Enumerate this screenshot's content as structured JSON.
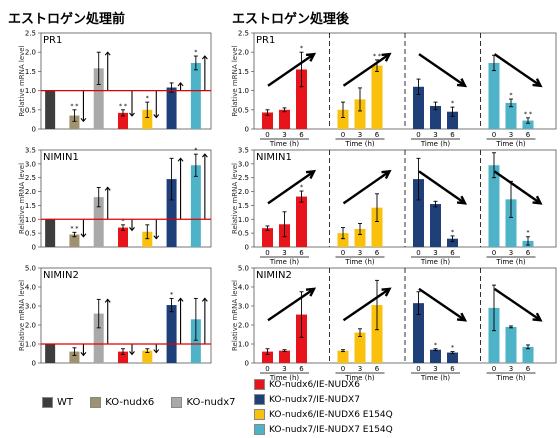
{
  "headings": {
    "before": "エストロゲン処理前",
    "after": "エストロゲン処理後"
  },
  "legend_left": [
    {
      "label": "WT",
      "color": "#3d3d3d"
    },
    {
      "label": "KO-nudx6",
      "color": "#9e9270"
    },
    {
      "label": "KO-nudx7",
      "color": "#a9a9a9"
    }
  ],
  "legend_right": [
    {
      "label": "KO-nudx6/IE-NUDX6",
      "color": "#e8141b"
    },
    {
      "label": "KO-nudx7/IE-NUDX7",
      "color": "#1f3f79"
    },
    {
      "label": "KO-nudx6/IE-NUDX6 E154Q",
      "color": "#f9c10b"
    },
    {
      "label": "KO-nudx7/IE-NUDX7 E154Q",
      "color": "#4fb3c8"
    }
  ],
  "ylabel": "Relative mRNA level",
  "chart_data": [
    {
      "type": "bar",
      "gene": "PR1",
      "panel": "before",
      "ylim": [
        0,
        2.5
      ],
      "yticks": [
        "0",
        "0.5",
        "1.0",
        "1.5",
        "2.0",
        "2.5"
      ],
      "reference_line": 1.0,
      "bars": [
        {
          "strain": "WT",
          "color": "#3d3d3d",
          "value": 1.0,
          "err": 0.0,
          "sig": "",
          "arrow": ""
        },
        {
          "strain": "KO-nudx6",
          "color": "#9e9270",
          "value": 0.35,
          "err": 0.15,
          "sig": "* *",
          "arrow": "down"
        },
        {
          "strain": "KO-nudx7",
          "color": "#a9a9a9",
          "value": 1.58,
          "err": 0.42,
          "sig": "",
          "arrow": "up"
        },
        {
          "strain": "KO-nudx6/IE-NUDX6",
          "color": "#e8141b",
          "value": 0.42,
          "err": 0.08,
          "sig": "* *",
          "arrow": "down"
        },
        {
          "strain": "KO-nudx6/IE-NUDX6 E154Q",
          "color": "#f9c10b",
          "value": 0.5,
          "err": 0.2,
          "sig": "*",
          "arrow": "down"
        },
        {
          "strain": "KO-nudx7/IE-NUDX7",
          "color": "#1f3f79",
          "value": 1.08,
          "err": 0.12,
          "sig": "",
          "arrow": "up"
        },
        {
          "strain": "KO-nudx7/IE-NUDX7 E154Q",
          "color": "#4fb3c8",
          "value": 1.72,
          "err": 0.18,
          "sig": "*",
          "arrow": "up"
        }
      ]
    },
    {
      "type": "bar",
      "gene": "NIMIN1",
      "panel": "before",
      "ylim": [
        0,
        3.5
      ],
      "yticks": [
        "0",
        "0.5",
        "1.0",
        "1.5",
        "2.0",
        "2.5",
        "3.0",
        "3.5"
      ],
      "reference_line": 1.0,
      "bars": [
        {
          "strain": "WT",
          "color": "#3d3d3d",
          "value": 1.0,
          "err": 0.0,
          "sig": "",
          "arrow": ""
        },
        {
          "strain": "KO-nudx6",
          "color": "#9e9270",
          "value": 0.45,
          "err": 0.08,
          "sig": "* *",
          "arrow": "down"
        },
        {
          "strain": "KO-nudx7",
          "color": "#a9a9a9",
          "value": 1.8,
          "err": 0.35,
          "sig": "",
          "arrow": "up"
        },
        {
          "strain": "KO-nudx6/IE-NUDX6",
          "color": "#e8141b",
          "value": 0.7,
          "err": 0.1,
          "sig": "*",
          "arrow": "down"
        },
        {
          "strain": "KO-nudx6/IE-NUDX6 E154Q",
          "color": "#f9c10b",
          "value": 0.55,
          "err": 0.25,
          "sig": "",
          "arrow": "down"
        },
        {
          "strain": "KO-nudx7/IE-NUDX7",
          "color": "#1f3f79",
          "value": 2.45,
          "err": 0.75,
          "sig": "",
          "arrow": "up"
        },
        {
          "strain": "KO-nudx7/IE-NUDX7 E154Q",
          "color": "#4fb3c8",
          "value": 2.95,
          "err": 0.4,
          "sig": "*",
          "arrow": "up"
        }
      ]
    },
    {
      "type": "bar",
      "gene": "NIMIN2",
      "panel": "before",
      "ylim": [
        0,
        5.0
      ],
      "yticks": [
        "0",
        "1.0",
        "2.0",
        "3.0",
        "4.0",
        "5.0"
      ],
      "reference_line": 1.0,
      "bars": [
        {
          "strain": "WT",
          "color": "#3d3d3d",
          "value": 1.0,
          "err": 0.0,
          "sig": "",
          "arrow": ""
        },
        {
          "strain": "KO-nudx6",
          "color": "#9e9270",
          "value": 0.6,
          "err": 0.2,
          "sig": "",
          "arrow": "down"
        },
        {
          "strain": "KO-nudx7",
          "color": "#a9a9a9",
          "value": 2.6,
          "err": 0.75,
          "sig": "",
          "arrow": "up"
        },
        {
          "strain": "KO-nudx6/IE-NUDX6",
          "color": "#e8141b",
          "value": 0.6,
          "err": 0.15,
          "sig": "",
          "arrow": "down"
        },
        {
          "strain": "KO-nudx6/IE-NUDX6 E154Q",
          "color": "#f9c10b",
          "value": 0.65,
          "err": 0.1,
          "sig": "",
          "arrow": "down"
        },
        {
          "strain": "KO-nudx7/IE-NUDX7",
          "color": "#1f3f79",
          "value": 3.05,
          "err": 0.35,
          "sig": "*",
          "arrow": "up"
        },
        {
          "strain": "KO-nudx7/IE-NUDX7 E154Q",
          "color": "#4fb3c8",
          "value": 2.3,
          "err": 1.1,
          "sig": "",
          "arrow": "up"
        }
      ]
    },
    {
      "type": "bar",
      "gene": "PR1",
      "panel": "after",
      "ylim": [
        0,
        2.5
      ],
      "yticks": [
        "0",
        "0.5",
        "1.0",
        "1.5",
        "2.0",
        "2.5"
      ],
      "xlabel": "Time (h)",
      "x": [
        "0",
        "3",
        "6"
      ],
      "groups": [
        {
          "strain": "KO-nudx6/IE-NUDX6",
          "color": "#e8141b",
          "trend": "up",
          "values": [
            0.43,
            0.5,
            1.55
          ],
          "err": [
            0.07,
            0.05,
            0.45
          ],
          "sig": [
            "",
            "",
            "*"
          ]
        },
        {
          "strain": "KO-nudx6/IE-NUDX6 E154Q",
          "color": "#f9c10b",
          "trend": "up",
          "values": [
            0.5,
            0.77,
            1.65
          ],
          "err": [
            0.2,
            0.3,
            0.15
          ],
          "sig": [
            "",
            "",
            "* *"
          ]
        },
        {
          "strain": "KO-nudx7/IE-NUDX7",
          "color": "#1f3f79",
          "trend": "down",
          "values": [
            1.1,
            0.6,
            0.45
          ],
          "err": [
            0.2,
            0.1,
            0.12
          ],
          "sig": [
            "",
            "",
            "*"
          ]
        },
        {
          "strain": "KO-nudx7/IE-NUDX7 E154Q",
          "color": "#4fb3c8",
          "trend": "down",
          "values": [
            1.72,
            0.68,
            0.22
          ],
          "err": [
            0.2,
            0.1,
            0.07
          ],
          "sig": [
            "",
            "*",
            "* *"
          ]
        }
      ]
    },
    {
      "type": "bar",
      "gene": "NIMIN1",
      "panel": "after",
      "ylim": [
        0,
        3.5
      ],
      "yticks": [
        "0",
        "0.5",
        "1.0",
        "1.5",
        "2.0",
        "2.5",
        "3.0",
        "3.5"
      ],
      "xlabel": "Time (h)",
      "x": [
        "0",
        "3",
        "6"
      ],
      "groups": [
        {
          "strain": "KO-nudx6/IE-NUDX6",
          "color": "#e8141b",
          "trend": "up",
          "values": [
            0.68,
            0.82,
            1.82
          ],
          "err": [
            0.08,
            0.45,
            0.2
          ],
          "sig": [
            "",
            "",
            "*"
          ]
        },
        {
          "strain": "KO-nudx6/IE-NUDX6 E154Q",
          "color": "#f9c10b",
          "trend": "up",
          "values": [
            0.5,
            0.65,
            1.42
          ],
          "err": [
            0.2,
            0.2,
            0.5
          ],
          "sig": [
            "",
            "",
            ""
          ]
        },
        {
          "strain": "KO-nudx7/IE-NUDX7",
          "color": "#1f3f79",
          "trend": "down",
          "values": [
            2.45,
            1.55,
            0.3
          ],
          "err": [
            0.75,
            0.1,
            0.1
          ],
          "sig": [
            "",
            "",
            "*"
          ]
        },
        {
          "strain": "KO-nudx7/IE-NUDX7 E154Q",
          "color": "#4fb3c8",
          "trend": "down",
          "values": [
            2.95,
            1.72,
            0.22
          ],
          "err": [
            0.45,
            0.65,
            0.15
          ],
          "sig": [
            "",
            "",
            "*"
          ]
        }
      ]
    },
    {
      "type": "bar",
      "gene": "NIMIN2",
      "panel": "after",
      "ylim": [
        0,
        5.0
      ],
      "yticks": [
        "0",
        "1.0",
        "2.0",
        "3.0",
        "4.0",
        "5.0"
      ],
      "xlabel": "Time (h)",
      "x": [
        "0",
        "3",
        "6"
      ],
      "groups": [
        {
          "strain": "KO-nudx6/IE-NUDX6",
          "color": "#e8141b",
          "trend": "up",
          "values": [
            0.6,
            0.65,
            2.55
          ],
          "err": [
            0.15,
            0.05,
            1.2
          ],
          "sig": [
            "",
            "",
            ""
          ]
        },
        {
          "strain": "KO-nudx6/IE-NUDX6 E154Q",
          "color": "#f9c10b",
          "trend": "up",
          "values": [
            0.65,
            1.6,
            3.05
          ],
          "err": [
            0.05,
            0.2,
            1.3
          ],
          "sig": [
            "",
            "",
            ""
          ]
        },
        {
          "strain": "KO-nudx7/IE-NUDX7",
          "color": "#1f3f79",
          "trend": "down",
          "values": [
            3.15,
            0.7,
            0.55
          ],
          "err": [
            0.6,
            0.05,
            0.05
          ],
          "sig": [
            "",
            "*",
            "*"
          ]
        },
        {
          "strain": "KO-nudx7/IE-NUDX7 E154Q",
          "color": "#4fb3c8",
          "trend": "down",
          "values": [
            2.9,
            1.9,
            0.85
          ],
          "err": [
            1.2,
            0.05,
            0.1
          ],
          "sig": [
            "",
            "",
            ""
          ]
        }
      ]
    }
  ]
}
